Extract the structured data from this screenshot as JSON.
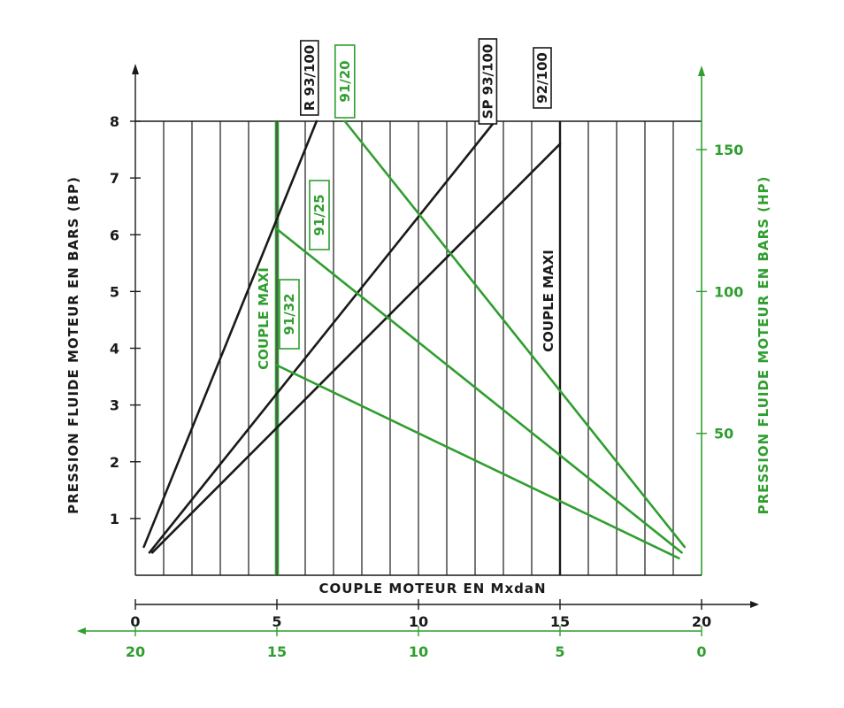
{
  "chart_data": {
    "type": "line",
    "title": "",
    "xlabel": "COUPLE MOTEUR EN MxdaN",
    "ylabel_left": "PRESSION FLUIDE MOTEUR EN BARS (BP)",
    "ylabel_right": "PRESSION FLUIDE MOTEUR EN BARS (HP)",
    "x_bottom": {
      "range": [
        0,
        20
      ],
      "ticks": [
        0,
        5,
        10,
        15,
        20
      ]
    },
    "x_green": {
      "range": [
        20,
        0
      ],
      "ticks": [
        20,
        15,
        10,
        5,
        0
      ]
    },
    "y_left": {
      "range": [
        0,
        8
      ],
      "ticks": [
        1,
        2,
        3,
        4,
        5,
        6,
        7,
        8
      ]
    },
    "y_right": {
      "range": [
        0,
        160
      ],
      "ticks": [
        50,
        100,
        150
      ]
    },
    "grid": true,
    "colors": {
      "black": "#1a1a1a",
      "green": "#2f9e2f"
    },
    "limits": [
      {
        "name": "COUPLE MAXI",
        "axis": "black",
        "x": 15,
        "color": "#1a1a1a"
      },
      {
        "name": "COUPLE MAXI",
        "axis": "green",
        "x": 15,
        "color": "#2f9e2f"
      }
    ],
    "series": [
      {
        "name": "R 93/100",
        "axis": "black",
        "color": "#1a1a1a",
        "points": [
          [
            0.3,
            0.5
          ],
          [
            6.4,
            8.0
          ]
        ]
      },
      {
        "name": "SP 93/100",
        "axis": "black",
        "color": "#1a1a1a",
        "points": [
          [
            0.5,
            0.4
          ],
          [
            12.7,
            8.0
          ]
        ]
      },
      {
        "name": "92/100",
        "axis": "black",
        "color": "#1a1a1a",
        "points": [
          [
            0.6,
            0.4
          ],
          [
            15.0,
            7.6
          ]
        ]
      },
      {
        "name": "91/20",
        "axis": "green",
        "color": "#2f9e2f",
        "points": [
          [
            12.6,
            160
          ],
          [
            0.6,
            10
          ]
        ]
      },
      {
        "name": "91/25",
        "axis": "green",
        "color": "#2f9e2f",
        "points": [
          [
            15.0,
            122
          ],
          [
            0.7,
            8
          ]
        ]
      },
      {
        "name": "91/32",
        "axis": "green",
        "color": "#2f9e2f",
        "points": [
          [
            15.0,
            74
          ],
          [
            0.8,
            6
          ]
        ]
      }
    ]
  }
}
